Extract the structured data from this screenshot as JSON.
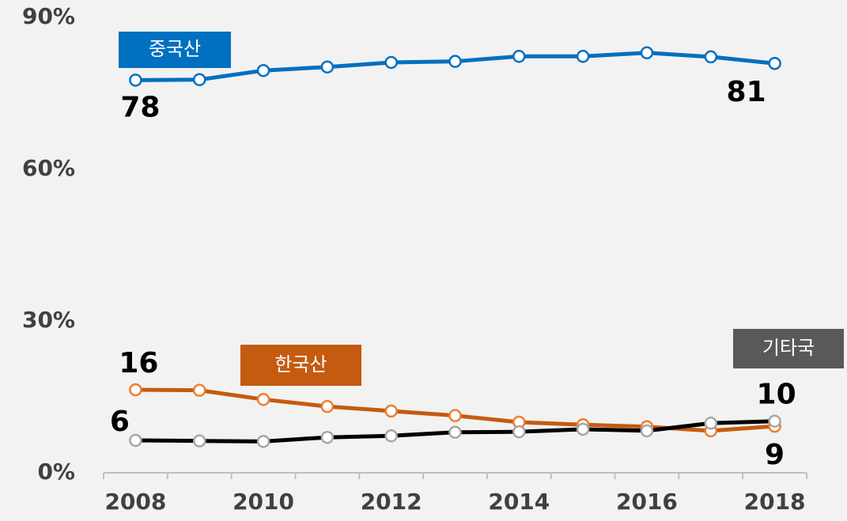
{
  "chart_data": {
    "type": "line",
    "categories": [
      "2008",
      null,
      "2010",
      null,
      "2012",
      null,
      "2014",
      null,
      "2016",
      null,
      "2018"
    ],
    "series": [
      {
        "name": "중국산",
        "color": "#0070c0",
        "marker_color": "#0070c0",
        "values": [
          77.6,
          77.7,
          79.5,
          80.2,
          81.1,
          81.3,
          82.3,
          82.3,
          83.0,
          82.2,
          80.9
        ],
        "value_labels": [
          "78",
          null,
          null,
          null,
          null,
          null,
          null,
          null,
          null,
          null,
          "81"
        ]
      },
      {
        "name": "한국산",
        "color": "#c55a11",
        "marker_color": "#ed7d31",
        "values": [
          16.4,
          16.3,
          14.5,
          13.1,
          12.2,
          11.3,
          10.0,
          9.5,
          9.1,
          8.3,
          9.2
        ],
        "value_labels": [
          "16",
          null,
          null,
          null,
          null,
          null,
          null,
          null,
          null,
          null,
          "9"
        ]
      },
      {
        "name": "기타국",
        "color": "#000000",
        "marker_color": "#a6a6a6",
        "legend_color": "#595959",
        "values": [
          6.4,
          6.3,
          6.2,
          7.0,
          7.3,
          8.0,
          8.1,
          8.6,
          8.3,
          9.8,
          10.2
        ],
        "value_labels": [
          "6",
          null,
          null,
          null,
          null,
          null,
          null,
          null,
          null,
          null,
          "10"
        ]
      }
    ],
    "ylim": [
      0,
      90
    ],
    "yticks": [
      {
        "value": 0,
        "label": "0%"
      },
      {
        "value": 30,
        "label": "30%"
      },
      {
        "value": 60,
        "label": "60%"
      },
      {
        "value": 90,
        "label": "90%"
      }
    ],
    "grid": false
  }
}
